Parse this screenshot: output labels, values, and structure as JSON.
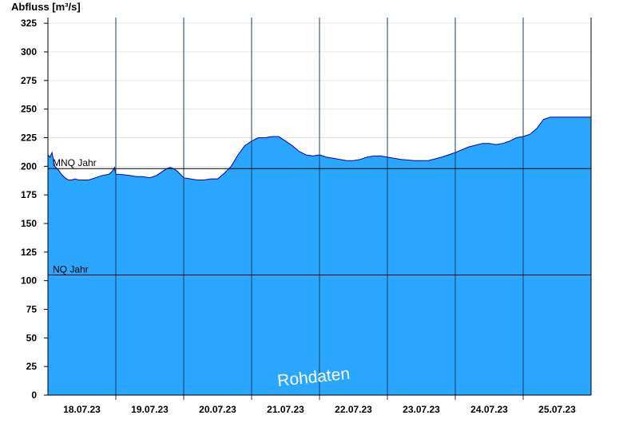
{
  "chart_data": {
    "type": "area",
    "ylabel": "Abfluss [m³/s]",
    "ylim": [
      0,
      330
    ],
    "yticks": [
      0,
      25,
      50,
      75,
      100,
      125,
      150,
      175,
      200,
      225,
      250,
      275,
      300,
      325
    ],
    "xlim": [
      0,
      8
    ],
    "x_day_boundaries": [
      0,
      1,
      2,
      3,
      4,
      5,
      6,
      7,
      8
    ],
    "x_tick_labels": [
      "18.07.23",
      "19.07.23",
      "20.07.23",
      "21.07.23",
      "22.07.23",
      "23.07.23",
      "24.07.23",
      "25.07.23"
    ],
    "grid": true,
    "fill_color": "#2aa6ff",
    "line_color": "#0000aa",
    "reference_lines": [
      {
        "label": "MNQ Jahr",
        "value": 198
      },
      {
        "label": "NQ Jahr",
        "value": 105
      }
    ],
    "watermark": "Rohdaten",
    "series": [
      {
        "x": [
          0,
          0.03,
          0.06,
          0.1,
          0.15,
          0.2,
          0.25,
          0.3,
          0.35,
          0.4,
          0.45,
          0.5,
          0.6,
          0.7,
          0.8,
          0.9,
          0.95,
          0.98,
          1.0,
          1.05,
          1.2,
          1.3,
          1.4,
          1.5,
          1.6,
          1.7,
          1.75,
          1.8,
          1.85,
          1.9,
          1.95,
          2.0,
          2.2,
          2.3,
          2.4,
          2.5,
          2.6,
          2.7,
          2.8,
          2.9,
          3.0,
          3.1,
          3.2,
          3.3,
          3.4,
          3.5,
          3.6,
          3.7,
          3.8,
          3.9,
          4.0,
          4.1,
          4.2,
          4.3,
          4.4,
          4.5,
          4.6,
          4.7,
          4.8,
          4.9,
          5.0,
          5.2,
          5.4,
          5.6,
          5.8,
          6.0,
          6.2,
          6.4,
          6.5,
          6.6,
          6.7,
          6.8,
          6.9,
          7.0,
          7.1,
          7.2,
          7.3,
          7.4,
          7.5,
          7.6,
          7.7,
          7.8,
          7.9,
          8.0
        ],
        "y": [
          210,
          208,
          212,
          200,
          197,
          193,
          190,
          188,
          188,
          189,
          188,
          188,
          188,
          190,
          192,
          193,
          196,
          199,
          193,
          193,
          192,
          191,
          191,
          190,
          192,
          196,
          198,
          199,
          198,
          196,
          193,
          190,
          188,
          188,
          189,
          189,
          194,
          200,
          210,
          218,
          222,
          225,
          225,
          226,
          226,
          222,
          218,
          213,
          210,
          209,
          210,
          208,
          207,
          206,
          205,
          205,
          206,
          208,
          209,
          209,
          208,
          206,
          205,
          205,
          208,
          212,
          217,
          220,
          220,
          219,
          220,
          222,
          225,
          226,
          228,
          233,
          241,
          243,
          243,
          243,
          243,
          243,
          243,
          243
        ]
      }
    ]
  }
}
